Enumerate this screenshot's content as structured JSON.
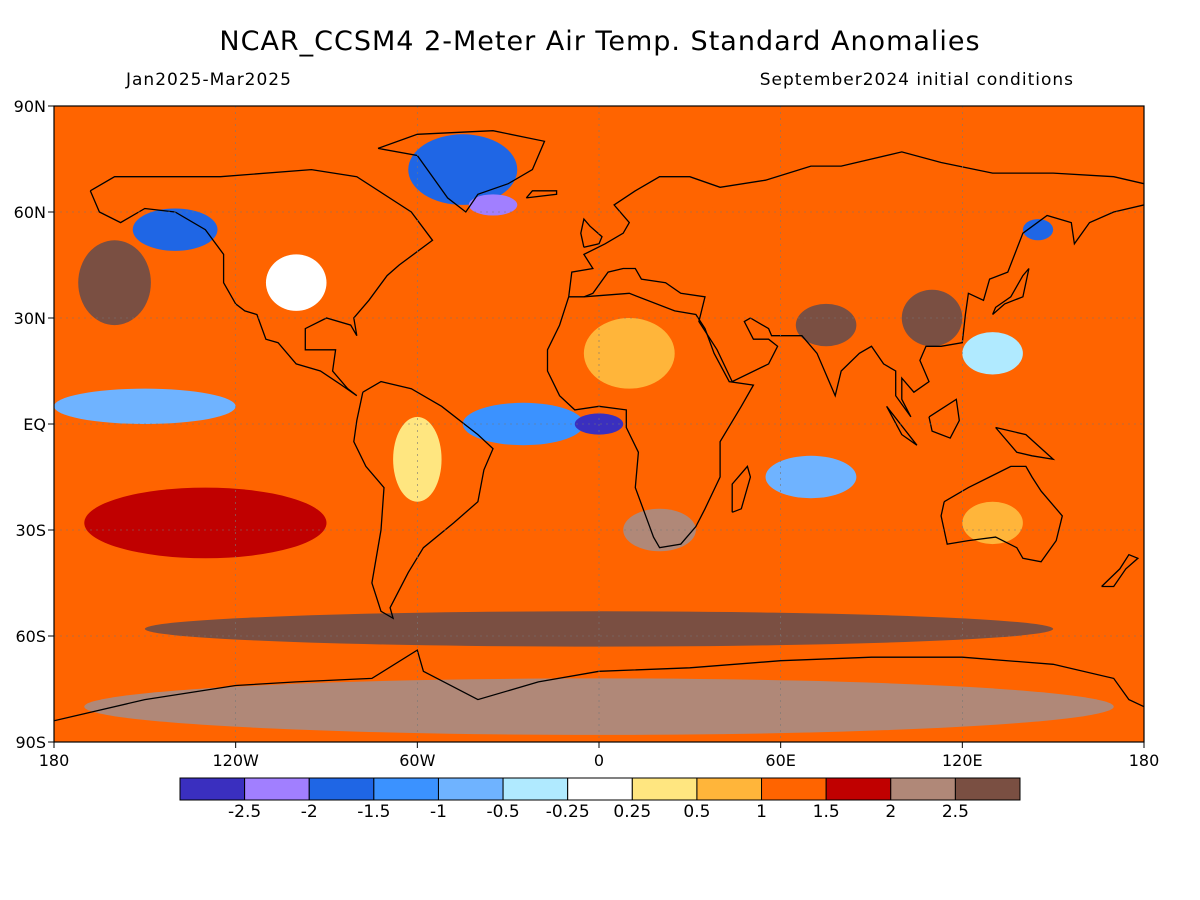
{
  "header": {
    "title": "NCAR_CCSM4 2-Meter Air Temp. Standard Anomalies",
    "period": "Jan2025-Mar2025",
    "init": "September2024 initial conditions"
  },
  "map": {
    "projection": "equirectangular",
    "lon_range": [
      -180,
      180
    ],
    "lat_range": [
      -90,
      90
    ],
    "grid": true,
    "lat_ticks": [
      {
        "lat": 90,
        "label": "90N"
      },
      {
        "lat": 60,
        "label": "60N"
      },
      {
        "lat": 30,
        "label": "30N"
      },
      {
        "lat": 0,
        "label": "EQ"
      },
      {
        "lat": -30,
        "label": "30S"
      },
      {
        "lat": -60,
        "label": "60S"
      },
      {
        "lat": -90,
        "label": "90S"
      }
    ],
    "lon_ticks": [
      {
        "lon": -180,
        "label": "180"
      },
      {
        "lon": -120,
        "label": "120W"
      },
      {
        "lon": -60,
        "label": "60W"
      },
      {
        "lon": 0,
        "label": "0"
      },
      {
        "lon": 60,
        "label": "60E"
      },
      {
        "lon": 120,
        "label": "120E"
      },
      {
        "lon": 180,
        "label": "180"
      }
    ],
    "base_color": "#ff6400",
    "anomaly_regions": [
      {
        "lon": -160,
        "lat": 40,
        "rx": 12,
        "ry": 12,
        "level": 2.5
      },
      {
        "lon": -140,
        "lat": 55,
        "rx": 14,
        "ry": 6,
        "level": -1.5
      },
      {
        "lon": -150,
        "lat": 5,
        "rx": 30,
        "ry": 5,
        "level": -0.5
      },
      {
        "lon": -100,
        "lat": 40,
        "rx": 10,
        "ry": 8,
        "level": 0
      },
      {
        "lon": -45,
        "lat": 72,
        "rx": 18,
        "ry": 10,
        "level": -1.5
      },
      {
        "lon": -35,
        "lat": 62,
        "rx": 8,
        "ry": 3,
        "level": -2
      },
      {
        "lon": -25,
        "lat": 0,
        "rx": 20,
        "ry": 6,
        "level": -1
      },
      {
        "lon": 0,
        "lat": 0,
        "rx": 8,
        "ry": 3,
        "level": -2.5
      },
      {
        "lon": 10,
        "lat": 20,
        "rx": 15,
        "ry": 10,
        "level": 0.5
      },
      {
        "lon": 50,
        "lat": 55,
        "rx": 20,
        "ry": 8,
        "level": 1
      },
      {
        "lon": 75,
        "lat": 28,
        "rx": 10,
        "ry": 6,
        "level": 2.5
      },
      {
        "lon": 110,
        "lat": 30,
        "rx": 10,
        "ry": 8,
        "level": 2.5
      },
      {
        "lon": 145,
        "lat": 55,
        "rx": 5,
        "ry": 3,
        "level": -1.5
      },
      {
        "lon": 130,
        "lat": 20,
        "rx": 10,
        "ry": 6,
        "level": -0.25
      },
      {
        "lon": 70,
        "lat": -15,
        "rx": 15,
        "ry": 6,
        "level": -0.5
      },
      {
        "lon": 130,
        "lat": -28,
        "rx": 10,
        "ry": 6,
        "level": 0.5
      },
      {
        "lon": -60,
        "lat": -10,
        "rx": 8,
        "ry": 12,
        "level": 0.25
      },
      {
        "lon": 20,
        "lat": -30,
        "rx": 12,
        "ry": 6,
        "level": 2
      },
      {
        "lon": -130,
        "lat": -28,
        "rx": 40,
        "ry": 10,
        "level": 1.5
      },
      {
        "lon": 0,
        "lat": -58,
        "rx": 150,
        "ry": 5,
        "level": 2.5
      },
      {
        "lon": 0,
        "lat": -80,
        "rx": 170,
        "ry": 8,
        "level": 2
      }
    ]
  },
  "colorbar": {
    "colors": [
      "#3a2fbf",
      "#a17fff",
      "#1f66e5",
      "#3b92ff",
      "#6fb3ff",
      "#b0eaff",
      "#ffffff",
      "#ffe680",
      "#ffb53a",
      "#ff6400",
      "#c00000",
      "#b08878",
      "#7a4f42"
    ],
    "labels": [
      "-2.5",
      "-2",
      "-1.5",
      "-1",
      "-0.5",
      "-0.25",
      "0.25",
      "0.5",
      "1",
      "1.5",
      "2",
      "2.5"
    ]
  },
  "colorscale": [
    {
      "max": -2.25,
      "color": "#3a2fbf"
    },
    {
      "max": -1.75,
      "color": "#a17fff"
    },
    {
      "max": -1.25,
      "color": "#1f66e5"
    },
    {
      "max": -0.75,
      "color": "#3b92ff"
    },
    {
      "max": -0.4,
      "color": "#6fb3ff"
    },
    {
      "max": -0.1,
      "color": "#b0eaff"
    },
    {
      "max": 0.1,
      "color": "#ffffff"
    },
    {
      "max": 0.4,
      "color": "#ffe680"
    },
    {
      "max": 0.75,
      "color": "#ffb53a"
    },
    {
      "max": 1.25,
      "color": "#ff6400"
    },
    {
      "max": 1.75,
      "color": "#c00000"
    },
    {
      "max": 2.25,
      "color": "#b08878"
    },
    {
      "max": 99,
      "color": "#7a4f42"
    }
  ]
}
